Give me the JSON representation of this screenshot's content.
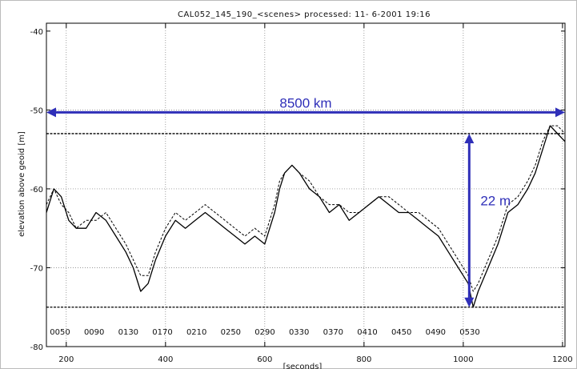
{
  "chart_data": {
    "type": "line",
    "title": "CAL052_145_190_<scenes>    processed: 11- 6-2001    19:16",
    "xlabel": "[seconds]",
    "ylabel": "elevation above geoid [m]",
    "xlim": [
      160,
      1205
    ],
    "ylim": [
      -80,
      -39
    ],
    "x_ticks": [
      200,
      400,
      600,
      800,
      1000,
      1200
    ],
    "y_ticks": [
      -40,
      -50,
      -60,
      -70,
      -80
    ],
    "secondary_x_labels": [
      "0050",
      "0090",
      "0130",
      "0170",
      "0210",
      "0250",
      "0290",
      "0330",
      "0370",
      "0410",
      "0450",
      "0490",
      "0530"
    ],
    "vertical_grid_at": [
      200,
      400,
      600,
      800,
      1000,
      1200
    ],
    "horizontal_grid_at": [
      -50,
      -60,
      -70
    ],
    "reference_lines": [
      -53.0,
      -75.0
    ],
    "series": [
      {
        "style": "solid",
        "x": [
          160,
          175,
          190,
          205,
          220,
          240,
          260,
          280,
          300,
          320,
          335,
          350,
          365,
          380,
          400,
          420,
          440,
          460,
          480,
          500,
          520,
          540,
          560,
          580,
          600,
          610,
          620,
          630,
          640,
          655,
          670,
          690,
          710,
          730,
          750,
          770,
          790,
          810,
          830,
          850,
          870,
          890,
          910,
          930,
          950,
          970,
          990,
          1000,
          1010,
          1020,
          1030,
          1050,
          1070,
          1090,
          1110,
          1130,
          1145,
          1160,
          1175,
          1190,
          1205
        ],
        "y": [
          -63,
          -60,
          -61,
          -64,
          -65,
          -65,
          -63,
          -64,
          -66,
          -68,
          -70,
          -73,
          -72,
          -69,
          -66,
          -64,
          -65,
          -64,
          -63,
          -64,
          -65,
          -66,
          -67,
          -66,
          -67,
          -65,
          -63,
          -60,
          -58,
          -57,
          -58,
          -60,
          -61,
          -63,
          -62,
          -64,
          -63,
          -62,
          -61,
          -62,
          -63,
          -63,
          -64,
          -65,
          -66,
          -68,
          -70,
          -71,
          -72,
          -75,
          -73,
          -70,
          -67,
          -63,
          -62,
          -60,
          -58,
          -55,
          -52,
          -53,
          -54
        ]
      },
      {
        "style": "dashed",
        "x": [
          160,
          175,
          190,
          205,
          220,
          240,
          260,
          280,
          300,
          320,
          335,
          350,
          365,
          380,
          400,
          420,
          440,
          460,
          480,
          500,
          520,
          540,
          560,
          580,
          600,
          610,
          620,
          630,
          640,
          655,
          670,
          690,
          710,
          730,
          750,
          770,
          790,
          810,
          830,
          850,
          870,
          890,
          910,
          930,
          950,
          970,
          990,
          1000,
          1010,
          1020,
          1030,
          1050,
          1070,
          1090,
          1110,
          1130,
          1145,
          1160,
          1175,
          1190,
          1205
        ],
        "y": [
          -62,
          -60,
          -62,
          -63,
          -65,
          -64,
          -64,
          -63,
          -65,
          -67,
          -69,
          -71,
          -71,
          -68,
          -65,
          -63,
          -64,
          -63,
          -62,
          -63,
          -64,
          -65,
          -66,
          -65,
          -66,
          -64,
          -62,
          -59,
          -58,
          -57,
          -58,
          -59,
          -61,
          -62,
          -62,
          -63,
          -63,
          -62,
          -61,
          -61,
          -62,
          -63,
          -63,
          -64,
          -65,
          -67,
          -69,
          -70,
          -71,
          -73,
          -72,
          -69,
          -66,
          -62,
          -61,
          -59,
          -57,
          -54,
          -52,
          -52,
          -53
        ]
      }
    ],
    "annotations": [
      {
        "text": "8500 km",
        "kind": "horizontal double arrow",
        "y": -50.3,
        "x_from": 160,
        "x_to": 1205
      },
      {
        "text": "22 m",
        "kind": "vertical double arrow",
        "x": 1012,
        "y_from": -53.0,
        "y_to": -75.0
      }
    ],
    "arrow_color": "#2f2fb8",
    "grid": true
  }
}
